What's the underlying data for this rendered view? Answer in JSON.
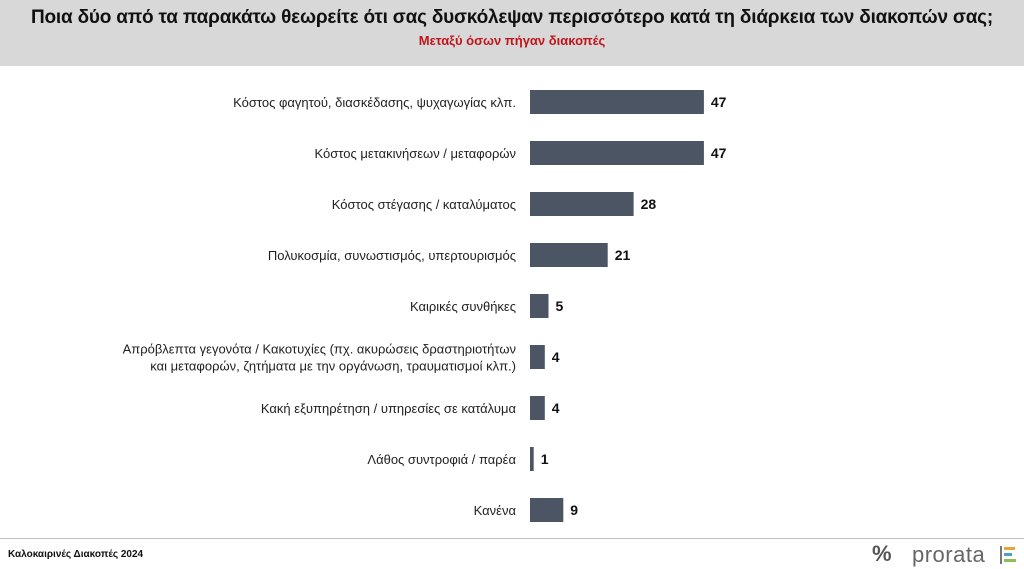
{
  "header": {
    "title": "Ποια δύο από τα παρακάτω θεωρείτε ότι σας δυσκόλεψαν περισσότερο κατά τη διάρκεια των διακοπών σας;",
    "subtitle": "Μεταξύ όσων πήγαν διακοπές"
  },
  "footer": {
    "survey_name": "Καλοκαιρινές Διακοπές 2024",
    "brand_symbol": "%",
    "brand_name": "prorata"
  },
  "colors": {
    "bar": "#4b5564",
    "header_bg": "#d8d8d8",
    "subtitle": "#c0151c"
  },
  "chart_data": {
    "type": "bar",
    "orientation": "horizontal",
    "categories": [
      [
        "Κόστος φαγητού, διασκέδασης, ψυχαγωγίας κλπ."
      ],
      [
        "Κόστος μετακινήσεων / μεταφορών"
      ],
      [
        "Κόστος στέγασης / καταλύματος"
      ],
      [
        "Πολυκοσμία, συνωστισμός, υπερτουρισμός"
      ],
      [
        "Καιρικές συνθήκες"
      ],
      [
        "Απρόβλεπτα γεγονότα / Κακοτυχίες (πχ. ακυρώσεις δραστηριοτήτων",
        "και μεταφορών, ζητήματα με την οργάνωση, τραυματισμοί κλπ.)"
      ],
      [
        "Κακή εξυπηρέτηση / υπηρεσίες σε κατάλυμα"
      ],
      [
        "Λάθος συντροφιά / παρέα"
      ],
      [
        "Κανένα"
      ]
    ],
    "values": [
      47,
      47,
      28,
      21,
      5,
      4,
      4,
      1,
      9
    ],
    "xlim": [
      0,
      50
    ],
    "grid": false,
    "legend": "none"
  }
}
